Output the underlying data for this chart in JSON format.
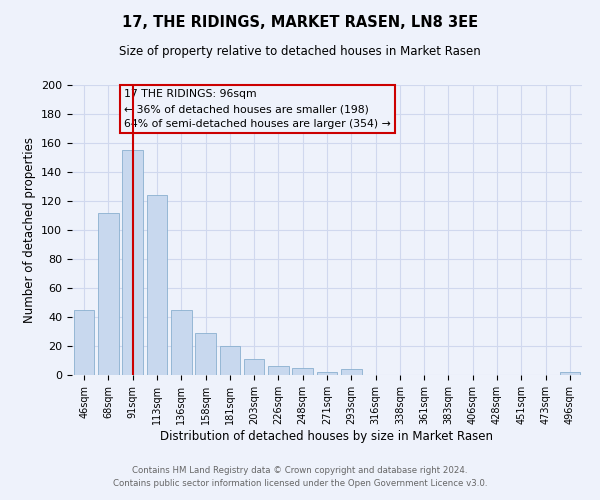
{
  "title": "17, THE RIDINGS, MARKET RASEN, LN8 3EE",
  "subtitle": "Size of property relative to detached houses in Market Rasen",
  "xlabel": "Distribution of detached houses by size in Market Rasen",
  "ylabel": "Number of detached properties",
  "footer_line1": "Contains HM Land Registry data © Crown copyright and database right 2024.",
  "footer_line2": "Contains public sector information licensed under the Open Government Licence v3.0.",
  "bar_labels": [
    "46sqm",
    "68sqm",
    "91sqm",
    "113sqm",
    "136sqm",
    "158sqm",
    "181sqm",
    "203sqm",
    "226sqm",
    "248sqm",
    "271sqm",
    "293sqm",
    "316sqm",
    "338sqm",
    "361sqm",
    "383sqm",
    "406sqm",
    "428sqm",
    "451sqm",
    "473sqm",
    "496sqm"
  ],
  "bar_values": [
    45,
    112,
    155,
    124,
    45,
    29,
    20,
    11,
    6,
    5,
    2,
    4,
    0,
    0,
    0,
    0,
    0,
    0,
    0,
    0,
    2
  ],
  "bar_color": "#c8d8ee",
  "bar_edge_color": "#8ab0d0",
  "background_color": "#eef2fb",
  "grid_color": "#d0d8ee",
  "vline_x_idx": 2,
  "vline_color": "#cc0000",
  "annotation_line1": "17 THE RIDINGS: 96sqm",
  "annotation_line2": "← 36% of detached houses are smaller (198)",
  "annotation_line3": "64% of semi-detached houses are larger (354) →",
  "box_edge_color": "#cc0000",
  "ylim": [
    0,
    200
  ],
  "yticks": [
    0,
    20,
    40,
    60,
    80,
    100,
    120,
    140,
    160,
    180,
    200
  ]
}
